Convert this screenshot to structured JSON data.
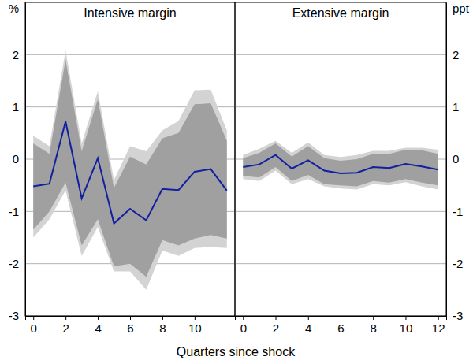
{
  "chart_data": {
    "type": "line",
    "xlabel": "Quarters since shock",
    "grid": true,
    "panels": [
      {
        "title": "Intensive margin",
        "ylabel": "%",
        "x": [
          0,
          1,
          2,
          3,
          4,
          5,
          6,
          7,
          8,
          9,
          10,
          11,
          12
        ],
        "xlim": [
          -0.5,
          12.5
        ],
        "xticks": [
          0,
          2,
          4,
          6,
          8,
          10
        ],
        "ylim": [
          -3,
          3
        ],
        "yticks": [
          -3,
          -2,
          -1,
          0,
          1,
          2
        ],
        "series": [
          {
            "color": "#1020a0",
            "values": [
              -0.52,
              -0.47,
              0.72,
              -0.75,
              0.02,
              -1.23,
              -0.95,
              -1.17,
              -0.57,
              -0.59,
              -0.24,
              -0.19,
              -0.6
            ]
          }
        ],
        "bands": [
          {
            "color": "#d3d3d3",
            "lower": [
              -1.5,
              -1.15,
              -0.6,
              -1.85,
              -1.3,
              -2.15,
              -2.15,
              -2.5,
              -1.75,
              -1.85,
              -1.7,
              -1.68,
              -1.7
            ],
            "upper": [
              0.45,
              0.25,
              2.08,
              0.3,
              1.3,
              -0.4,
              0.25,
              0.15,
              0.55,
              0.73,
              1.32,
              1.33,
              0.55
            ]
          },
          {
            "color": "#a0a0a0",
            "lower": [
              -1.35,
              -1.0,
              -0.45,
              -1.65,
              -1.15,
              -2.05,
              -2.0,
              -2.25,
              -1.55,
              -1.65,
              -1.52,
              -1.45,
              -1.52
            ],
            "upper": [
              0.3,
              0.1,
              1.9,
              0.15,
              1.15,
              -0.55,
              0.05,
              -0.1,
              0.4,
              0.5,
              1.05,
              1.07,
              0.35
            ]
          }
        ]
      },
      {
        "title": "Extensive margin",
        "ylabel": "ppt",
        "x": [
          0,
          1,
          2,
          3,
          4,
          5,
          6,
          7,
          8,
          9,
          10,
          11,
          12
        ],
        "xlim": [
          -0.5,
          12.5
        ],
        "xticks": [
          0,
          2,
          4,
          6,
          8,
          10,
          12
        ],
        "ylim": [
          -3,
          3
        ],
        "yticks": [
          -3,
          -2,
          -1,
          0,
          1,
          2
        ],
        "series": [
          {
            "color": "#1020a0",
            "values": [
              -0.15,
              -0.1,
              0.08,
              -0.18,
              -0.02,
              -0.22,
              -0.27,
              -0.26,
              -0.15,
              -0.17,
              -0.09,
              -0.14,
              -0.2
            ]
          }
        ],
        "bands": [
          {
            "color": "#d3d3d3",
            "lower": [
              -0.38,
              -0.42,
              -0.22,
              -0.48,
              -0.38,
              -0.52,
              -0.56,
              -0.58,
              -0.48,
              -0.5,
              -0.44,
              -0.52,
              -0.58
            ],
            "upper": [
              0.08,
              0.2,
              0.35,
              0.12,
              0.32,
              0.08,
              0.04,
              0.08,
              0.16,
              0.16,
              0.22,
              0.22,
              0.18
            ]
          },
          {
            "color": "#a0a0a0",
            "lower": [
              -0.32,
              -0.35,
              -0.15,
              -0.42,
              -0.3,
              -0.48,
              -0.5,
              -0.52,
              -0.42,
              -0.45,
              -0.38,
              -0.45,
              -0.5
            ],
            "upper": [
              0.02,
              0.12,
              0.3,
              0.05,
              0.25,
              0.02,
              -0.03,
              0.0,
              0.1,
              0.1,
              0.18,
              0.17,
              0.1
            ]
          }
        ]
      }
    ]
  }
}
